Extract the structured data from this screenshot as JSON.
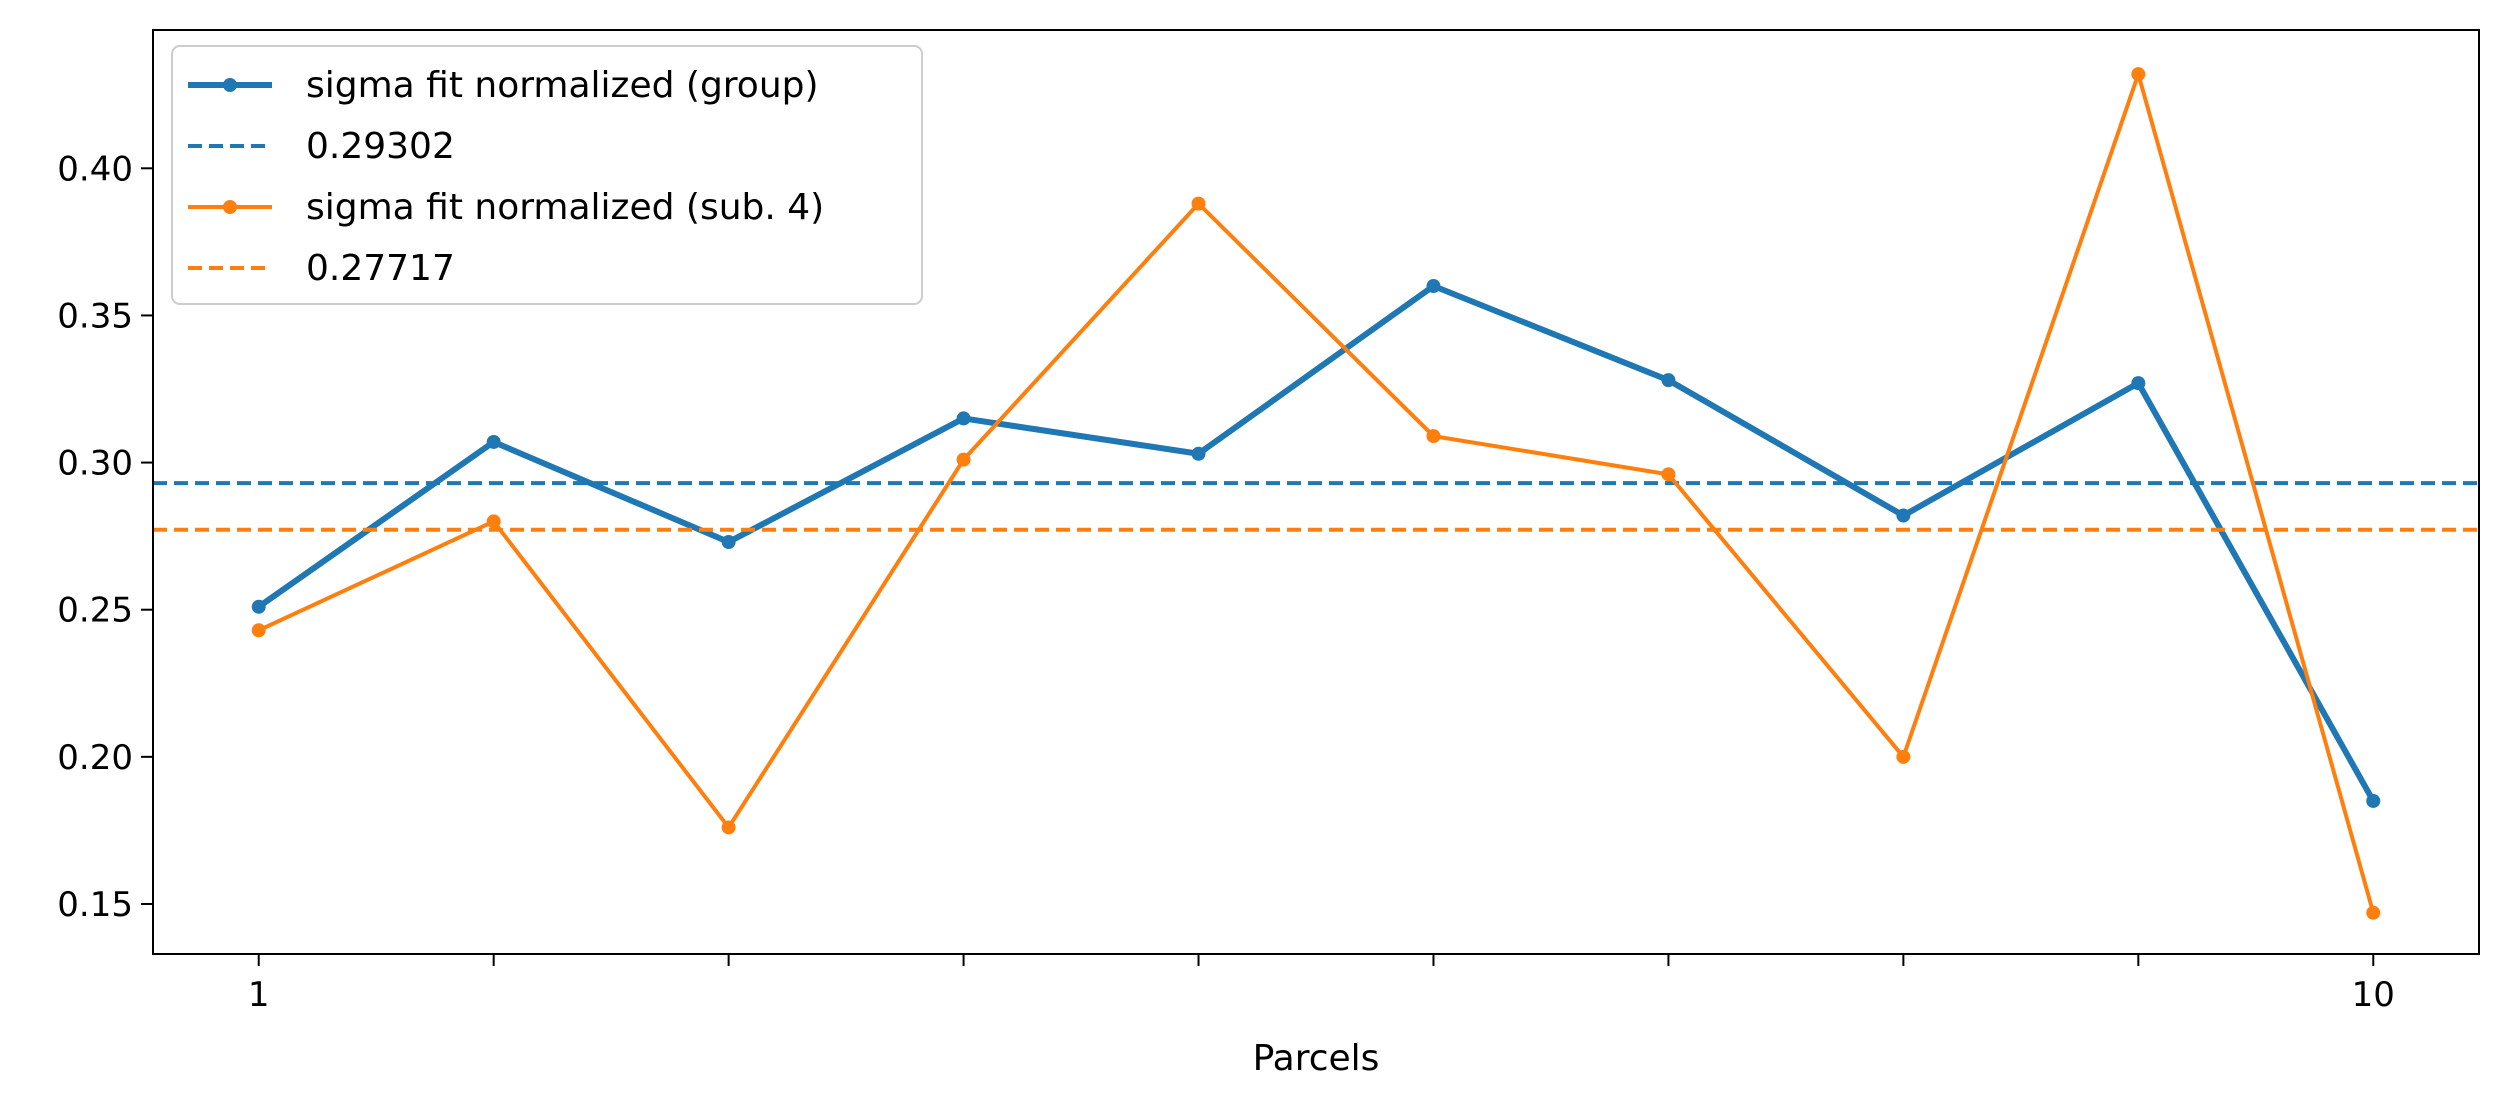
{
  "chart_data": {
    "type": "line",
    "title": "",
    "xlabel": "Parcels",
    "ylabel": "",
    "x": [
      1,
      2,
      3,
      4,
      5,
      6,
      7,
      8,
      9,
      10
    ],
    "x_tick_labels": [
      "1",
      "",
      "",
      "",
      "",
      "",
      "",
      "",
      "",
      "10"
    ],
    "xlim": [
      0.55,
      10.45
    ],
    "ylim": [
      0.133,
      0.447
    ],
    "y_ticks": [
      0.15,
      0.2,
      0.25,
      0.3,
      0.35,
      0.4
    ],
    "y_tick_labels": [
      "0.15",
      "0.20",
      "0.25",
      "0.30",
      "0.35",
      "0.40"
    ],
    "legend_position": "top-left",
    "series": [
      {
        "name": "sigma fit normalized (group)",
        "color": "#1f77b4",
        "style": "solid-marker-thick",
        "values": [
          0.251,
          0.307,
          0.273,
          0.315,
          0.303,
          0.36,
          0.328,
          0.282,
          0.327,
          0.185
        ]
      },
      {
        "name": "0.29302",
        "color": "#1f77b4",
        "style": "hline-dashed",
        "value": 0.29302
      },
      {
        "name": "sigma fit normalized (sub. 4)",
        "color": "#ff7f0e",
        "style": "solid-marker",
        "values": [
          0.243,
          0.28,
          0.176,
          0.301,
          0.388,
          0.309,
          0.296,
          0.2,
          0.432,
          0.147
        ]
      },
      {
        "name": "0.27717",
        "color": "#ff7f0e",
        "style": "hline-dashed",
        "value": 0.27717
      }
    ]
  }
}
